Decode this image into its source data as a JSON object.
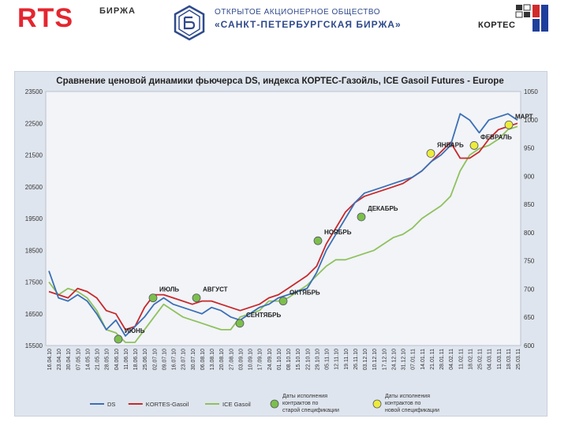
{
  "header": {
    "rts_logo": "RTS",
    "rts_sub": "БИРЖА",
    "spb_line1": "ОТКРЫТОЕ АКЦИОНЕРНОЕ ОБЩЕСТВО",
    "spb_line2": "«САНКТ-ПЕТЕРБУРГСКАЯ БИРЖА»",
    "kortes": "КОРТЕС"
  },
  "colors": {
    "ds": "#3b6fb6",
    "kortes": "#c8282b",
    "ice": "#8fc15c",
    "old_spec_marker": "#7cbf4c",
    "new_spec_marker": "#ecec3c"
  },
  "chart_data": {
    "type": "line",
    "title": "Сравнение ценовой динамики фьючерса  DS, индекса КОРТЕС-Газойль, ICE Gasoil Futures - Europe",
    "ylim_left": [
      15500,
      23500
    ],
    "yticks_left": [
      "23500",
      "22500",
      "21500",
      "20500",
      "19500",
      "18500",
      "17500",
      "16500",
      "15500"
    ],
    "ylim_right": [
      600,
      1050
    ],
    "yticks_right": [
      "1050",
      "1000",
      "950",
      "900",
      "850",
      "800",
      "750",
      "700",
      "650",
      "600"
    ],
    "x_labels": [
      "16.04.10",
      "23.04.10",
      "30.04.10",
      "07.05.10",
      "14.05.10",
      "21.05.10",
      "28.05.10",
      "04.06.10",
      "11.06.10",
      "18.06.10",
      "25.06.10",
      "02.07.10",
      "09.07.10",
      "16.07.10",
      "23.07.10",
      "30.07.10",
      "06.08.10",
      "13.08.10",
      "20.08.10",
      "27.08.10",
      "03.09.10",
      "10.09.10",
      "17.09.10",
      "24.09.10",
      "01.10.10",
      "08.10.10",
      "15.10.10",
      "22.10.10",
      "29.10.10",
      "05.11.10",
      "12.11.10",
      "19.11.10",
      "26.11.10",
      "03.12.10",
      "10.12.10",
      "17.12.10",
      "24.12.10",
      "31.12.10",
      "07.01.11",
      "14.01.11",
      "21.01.11",
      "28.01.11",
      "04.02.11",
      "11.02.11",
      "18.02.11",
      "25.02.11",
      "04.03.11",
      "11.03.11",
      "18.03.11",
      "25.03.11"
    ],
    "series": [
      {
        "name": "DS",
        "axis": "left",
        "color": "#3b6fb6",
        "values": [
          17850,
          17000,
          16900,
          17100,
          16900,
          16500,
          16000,
          16300,
          15800,
          16100,
          16400,
          16800,
          17000,
          16800,
          16700,
          16600,
          16500,
          16700,
          16600,
          16400,
          16300,
          16500,
          16700,
          16800,
          17000,
          17100,
          17200,
          17300,
          17800,
          18500,
          19000,
          19500,
          20000,
          20300,
          20400,
          20500,
          20600,
          20700,
          20800,
          21000,
          21300,
          21500,
          21800,
          22800,
          22600,
          22200,
          22600,
          22700,
          22800,
          22600
        ]
      },
      {
        "name": "KORTES-Gasoil",
        "axis": "left",
        "color": "#c8282b",
        "values": [
          17200,
          17100,
          17000,
          17300,
          17200,
          17000,
          16600,
          16500,
          16000,
          16100,
          16700,
          17100,
          17100,
          17000,
          16900,
          16800,
          16900,
          16900,
          16800,
          16700,
          16600,
          16700,
          16800,
          17000,
          17100,
          17300,
          17500,
          17700,
          18000,
          18700,
          19200,
          19700,
          20000,
          20200,
          20300,
          20400,
          20500,
          20600,
          20800,
          21000,
          21300,
          21600,
          21900,
          21400,
          21400,
          21600,
          22000,
          22300,
          22400,
          22500
        ]
      },
      {
        "name": "ICE Gasoil",
        "axis": "left",
        "color": "#8fc15c",
        "values": [
          17500,
          17100,
          17300,
          17200,
          17000,
          16600,
          16000,
          15900,
          15600,
          15600,
          16000,
          16400,
          16800,
          16600,
          16400,
          16300,
          16200,
          16100,
          16000,
          16000,
          16400,
          16500,
          16600,
          16900,
          16900,
          17000,
          17200,
          17400,
          17700,
          18000,
          18200,
          18200,
          18300,
          18400,
          18500,
          18700,
          18900,
          19000,
          19200,
          19500,
          19700,
          19900,
          20200,
          21000,
          21500,
          21700,
          21800,
          22000,
          22300,
          22400
        ]
      }
    ],
    "annotations": [
      {
        "label": "ИЮНЬ",
        "x_index": 8,
        "y": 15700,
        "marker": "old"
      },
      {
        "label": "ИЮЛЬ",
        "x_index": 12,
        "y": 17000,
        "marker": "old"
      },
      {
        "label": "АВГУСТ",
        "x_index": 17,
        "y": 17000,
        "marker": "old"
      },
      {
        "label": "СЕНТЯБРЬ",
        "x_index": 22,
        "y": 16200,
        "marker": "old"
      },
      {
        "label": "ОКТЯБРЬ",
        "x_index": 27,
        "y": 16900,
        "marker": "old"
      },
      {
        "label": "НОЯБРЬ",
        "x_index": 31,
        "y": 18800,
        "marker": "old"
      },
      {
        "label": "ДЕКАБРЬ",
        "x_index": 36,
        "y": 19550,
        "marker": "old"
      },
      {
        "label": "ЯНВАРЬ",
        "x_index": 44,
        "y": 21550,
        "marker": "new"
      },
      {
        "label": "ФЕВРАЛЬ",
        "x_index": 49,
        "y": 21800,
        "marker": "new"
      },
      {
        "label": "МАРТ",
        "x_index": 53,
        "y": 22450,
        "marker": "new"
      }
    ],
    "legend": [
      {
        "label": "DS",
        "kind": "line",
        "color": "#3b6fb6"
      },
      {
        "label": "KORTES-Gasoil",
        "kind": "line",
        "color": "#c8282b"
      },
      {
        "label": "ICE Gasoil",
        "kind": "line",
        "color": "#8fc15c"
      },
      {
        "label": "Даты исполнения контрактов по старой спецификации",
        "kind": "marker",
        "color": "#7cbf4c"
      },
      {
        "label": "Даты исполнения контрактов по новой спецификации",
        "kind": "marker",
        "color": "#ecec3c"
      }
    ],
    "legend_placement": "bottom",
    "grid": false
  }
}
